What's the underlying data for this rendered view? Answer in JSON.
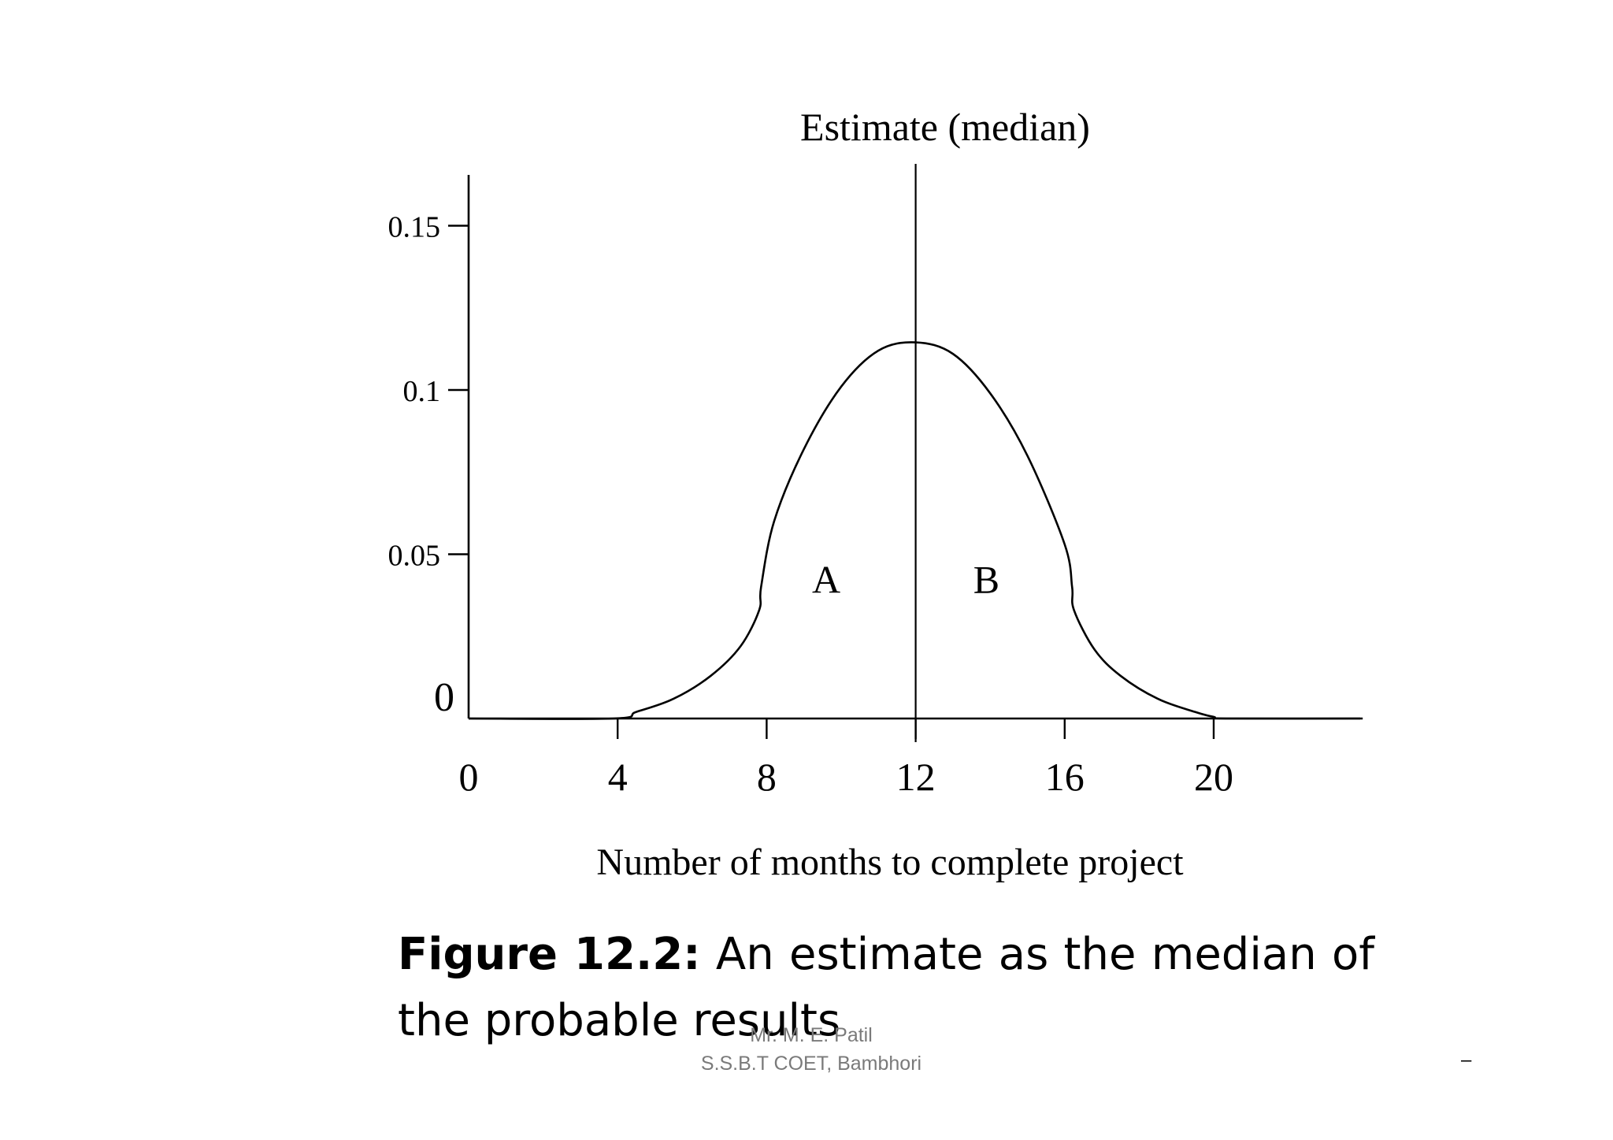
{
  "chart_data": {
    "type": "area",
    "title": "Estimate (median)",
    "xlabel": "Number of months to complete project",
    "ylabel": "",
    "xlim": [
      0,
      24
    ],
    "ylim": [
      0,
      0.17
    ],
    "x_ticks": [
      0,
      4,
      8,
      12,
      16,
      20
    ],
    "x_tick_labels": [
      "0",
      "4",
      "8",
      "12",
      "16",
      "20"
    ],
    "y_ticks": [
      0,
      0.05,
      0.1,
      0.15
    ],
    "y_tick_labels": [
      "0",
      "0.05",
      "0.1",
      "0.15"
    ],
    "median": 12,
    "grid": false,
    "series": [
      {
        "x": [
          0,
          3.9,
          4.5,
          5.5,
          6.5,
          7.3,
          7.8,
          7.85,
          8.2,
          9,
          10,
          11,
          12,
          13,
          14,
          15,
          16,
          16.2,
          16.25,
          16.8,
          17.5,
          18.5,
          19.5,
          20,
          20.4,
          24
        ],
        "y": [
          0,
          0,
          0.002,
          0.006,
          0.013,
          0.022,
          0.033,
          0.04,
          0.06,
          0.082,
          0.101,
          0.112,
          0.1145,
          0.111,
          0.099,
          0.08,
          0.053,
          0.04,
          0.033,
          0.021,
          0.013,
          0.006,
          0.002,
          0.0005,
          0,
          0
        ]
      }
    ],
    "annotations": [
      {
        "text": "A",
        "x": 9.6,
        "y": 0.043
      },
      {
        "text": "B",
        "x": 13.9,
        "y": 0.043
      }
    ]
  },
  "caption": {
    "label": "Figure 12.2:",
    "text": " An estimate as the median of the probable results"
  },
  "footer": {
    "author": "Mr. M. E. Patil",
    "institution": "S.S.B.T COET, Bambhori"
  },
  "page_mark": "–"
}
